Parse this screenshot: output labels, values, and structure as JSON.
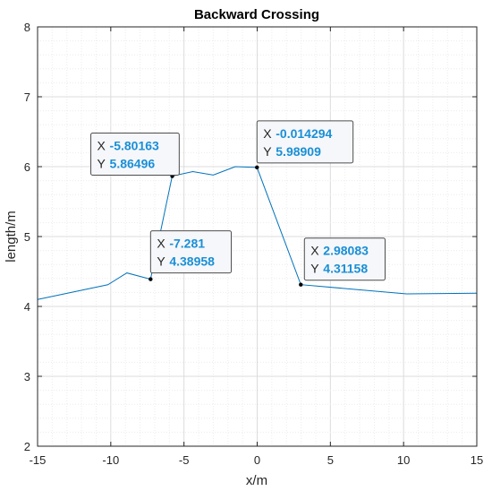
{
  "chart_data": {
    "type": "line",
    "title": "Backward Crossing",
    "xlabel": "x/m",
    "ylabel": "length/m",
    "xlim": [
      -15,
      15
    ],
    "ylim": [
      2,
      8
    ],
    "xticks": [
      "-15",
      "-10",
      "-5",
      "0",
      "5",
      "10",
      "15"
    ],
    "yticks": [
      "2",
      "3",
      "4",
      "5",
      "6",
      "7",
      "8"
    ],
    "grid": true,
    "minor_grid": true,
    "series": [
      {
        "color": "#0072BD",
        "x": [
          -15.0,
          -10.2,
          -8.9,
          -7.281,
          -5.80163,
          -4.4,
          -3.0,
          -1.5,
          -0.014294,
          2.98083,
          10.2,
          15.0
        ],
        "y": [
          4.1,
          4.31,
          4.48,
          4.38958,
          5.86496,
          5.93,
          5.88,
          6.0,
          5.98909,
          4.31158,
          4.18,
          4.19
        ]
      }
    ],
    "datatips": [
      {
        "x_label": "X",
        "x_value": "-5.80163",
        "y_label": "Y",
        "y_value": "5.86496",
        "x": -5.80163,
        "y": 5.86496
      },
      {
        "x_label": "X",
        "x_value": "-0.014294",
        "y_label": "Y",
        "y_value": "5.98909",
        "x": -0.014294,
        "y": 5.98909
      },
      {
        "x_label": "X",
        "x_value": "-7.281",
        "y_label": "Y",
        "y_value": "4.38958",
        "x": -7.281,
        "y": 4.38958
      },
      {
        "x_label": "X",
        "x_value": "2.98083",
        "y_label": "Y",
        "y_value": "4.31158",
        "x": 2.98083,
        "y": 4.31158
      }
    ],
    "colors": {
      "line": "#0072BD",
      "tip_value": "#1a8fd6",
      "axis": "#262626",
      "grid": "#d9d9d9"
    }
  }
}
